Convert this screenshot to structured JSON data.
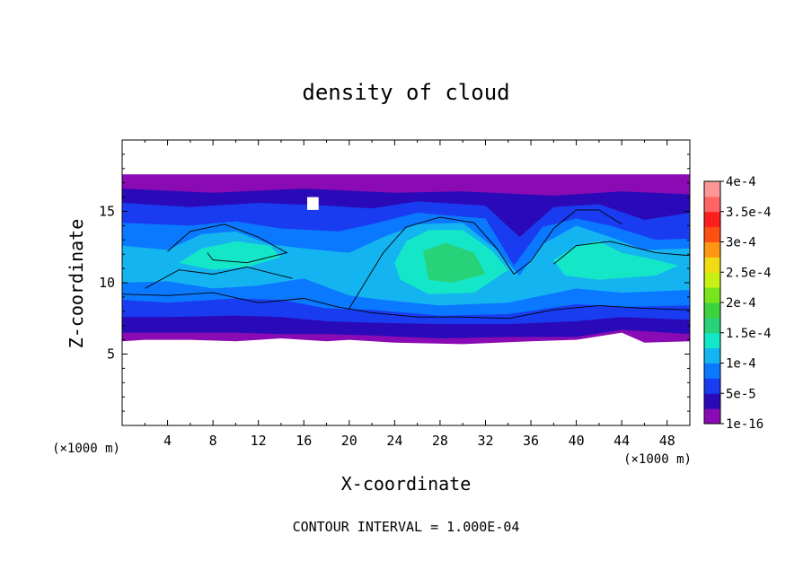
{
  "chart_data": {
    "type": "heatmap",
    "title": "density of cloud",
    "xlabel": "X-coordinate",
    "ylabel": "Z-coordinate",
    "x_unit": "(×1000 m)",
    "x_unit_right": "(×1000 m)",
    "xlim": [
      0,
      50
    ],
    "ylim": [
      0,
      20
    ],
    "x_ticks": [
      4,
      8,
      12,
      16,
      20,
      24,
      28,
      32,
      36,
      40,
      44,
      48
    ],
    "y_ticks": [
      5,
      10,
      15
    ],
    "footer": "CONTOUR INTERVAL = 1.000E-04",
    "colorbar": {
      "labels": [
        "1e-16",
        "5e-5",
        "1e-4",
        "1.5e-4",
        "2e-4",
        "2.5e-4",
        "3e-4",
        "3.5e-4",
        "4e-4"
      ],
      "colors": [
        "#8a0ab4",
        "#2a0ab8",
        "#1a3cf0",
        "#0a78ff",
        "#14b4f0",
        "#14e6c8",
        "#28d278",
        "#3cd23c",
        "#78e61e",
        "#c8f014",
        "#f0dc14",
        "#ff9614",
        "#ff5014",
        "#ff1e1e",
        "#ff6464",
        "#ff9696"
      ]
    },
    "field": {
      "description": "cloud density field: layer from ~6 to ~17.5 km, maximum ~1.5e-4 to 2e-4 in a dome centred near x=28-30, z=11-12",
      "bands": [
        {
          "level": "1e-16",
          "color": "#8a0ab4"
        },
        {
          "level": "2.5e-5",
          "color": "#2a0ab8"
        },
        {
          "level": "5e-5",
          "color": "#1a3cf0"
        },
        {
          "level": "7.5e-5",
          "color": "#0a78ff"
        },
        {
          "level": "1e-4",
          "color": "#14b4f0"
        },
        {
          "level": "1.25e-4",
          "color": "#14e6c8"
        },
        {
          "level": "1.5e-4",
          "color": "#28d278"
        }
      ]
    }
  }
}
